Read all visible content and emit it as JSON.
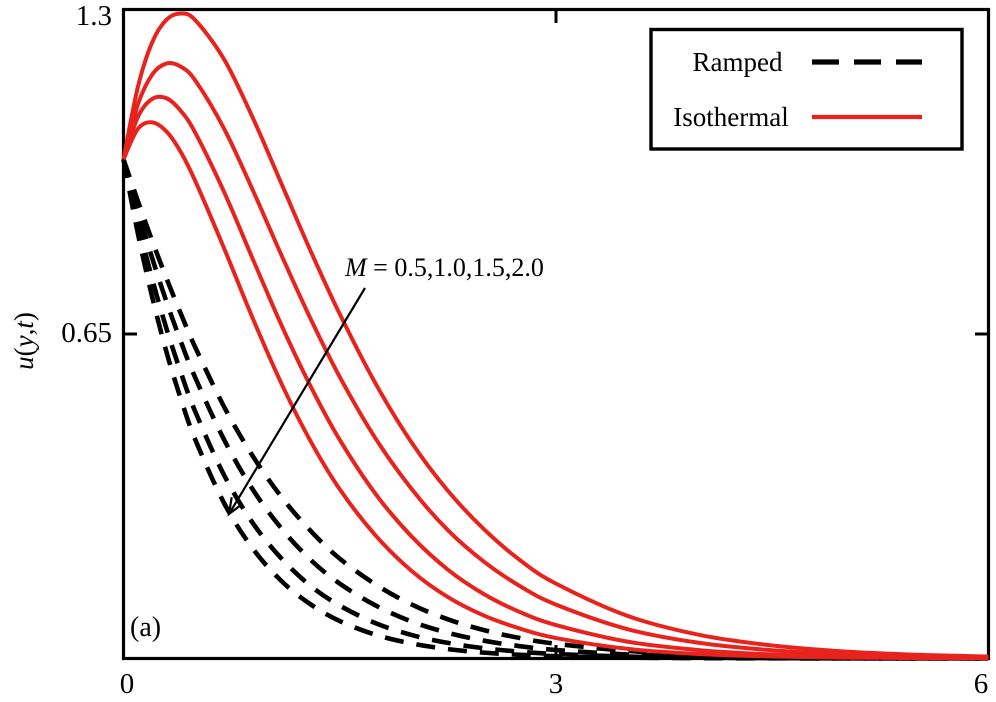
{
  "figure": {
    "panel_label": "(a)",
    "annotation": {
      "param_italic": "M",
      "param_rest": " = 0.5,1.0,1.5,2.0"
    },
    "y_axis": {
      "title": "u(y,t)",
      "title_parts": {
        "v1": "u",
        "p1": "(",
        "v2": "y",
        "c": ",",
        "v3": "t",
        "p2": ")"
      },
      "tick_top": "1.3",
      "tick_mid": "0.65"
    },
    "x_axis": {
      "tick_0": "0",
      "tick_3": "3",
      "tick_6": "6"
    },
    "legend": [
      {
        "label": "Ramped",
        "style": "dashed",
        "color": "#000000"
      },
      {
        "label": "Isothermal",
        "style": "solid",
        "color": "#e8231d"
      }
    ]
  },
  "chart_data": {
    "type": "line",
    "title": "",
    "xlabel": "",
    "ylabel": "u(y,t)",
    "xlim": [
      0,
      6
    ],
    "ylim": [
      0,
      1.3
    ],
    "x_ticks": [
      0,
      3,
      6
    ],
    "y_ticks": [
      0.65,
      1.3
    ],
    "grid": false,
    "legend_position": "top-right",
    "annotation_text": "M = 0.5,1.0,1.5,2.0",
    "x": [
      0,
      0.1,
      0.2,
      0.3,
      0.4,
      0.5,
      0.7,
      0.9,
      1.1,
      1.3,
      1.5,
      1.75,
      2.0,
      2.25,
      2.5,
      2.75,
      3.0,
      3.5,
      4.0,
      4.5,
      5.0,
      5.5,
      6.0
    ],
    "series": [
      {
        "name": "Ramped M=0.5",
        "group": "Ramped",
        "M": 0.5,
        "color": "#000000",
        "dashed": true,
        "values": [
          1,
          0.916,
          0.836,
          0.76,
          0.689,
          0.622,
          0.503,
          0.404,
          0.322,
          0.255,
          0.2,
          0.148,
          0.108,
          0.0785,
          0.0569,
          0.041,
          0.0295,
          0.0151,
          0.0077,
          0.0038,
          0.0019,
          0.001,
          0.0005
        ]
      },
      {
        "name": "Ramped M=1.0",
        "group": "Ramped",
        "M": 1.0,
        "color": "#000000",
        "dashed": true,
        "values": [
          1,
          0.897,
          0.801,
          0.713,
          0.633,
          0.561,
          0.437,
          0.337,
          0.259,
          0.197,
          0.15,
          0.106,
          0.0739,
          0.0515,
          0.0357,
          0.0247,
          0.017,
          0.008,
          0.0037,
          0.0017,
          0.0008,
          0.0004,
          0.0002
        ]
      },
      {
        "name": "Ramped M=1.5",
        "group": "Ramped",
        "M": 1.5,
        "color": "#000000",
        "dashed": true,
        "values": [
          1,
          0.873,
          0.759,
          0.659,
          0.571,
          0.493,
          0.366,
          0.27,
          0.199,
          0.145,
          0.106,
          0.0706,
          0.047,
          0.0312,
          0.0206,
          0.0135,
          0.0089,
          0.0038,
          0.0016,
          0.0007,
          0.0003,
          0.0001,
          0
        ]
      },
      {
        "name": "Ramped M=2.0",
        "group": "Ramped",
        "M": 2.0,
        "color": "#000000",
        "dashed": true,
        "values": [
          1,
          0.851,
          0.723,
          0.612,
          0.518,
          0.437,
          0.31,
          0.219,
          0.154,
          0.108,
          0.075,
          0.0474,
          0.03,
          0.0188,
          0.0118,
          0.0074,
          0.0046,
          0.0018,
          0.0007,
          0.0003,
          0.0001,
          0,
          0
        ]
      },
      {
        "name": "Isothermal M=0.5",
        "group": "Isothermal",
        "M": 0.5,
        "color": "#e8231d",
        "dashed": false,
        "values": [
          1,
          1.145,
          1.235,
          1.28,
          1.292,
          1.278,
          1.199,
          1.081,
          0.948,
          0.815,
          0.69,
          0.55,
          0.432,
          0.336,
          0.259,
          0.197,
          0.15,
          0.085,
          0.047,
          0.026,
          0.014,
          0.0075,
          0.004
        ]
      },
      {
        "name": "Isothermal M=1.0",
        "group": "Isothermal",
        "M": 1.0,
        "color": "#e8231d",
        "dashed": false,
        "values": [
          1,
          1.11,
          1.17,
          1.192,
          1.185,
          1.157,
          1.06,
          0.936,
          0.805,
          0.679,
          0.564,
          0.44,
          0.339,
          0.257,
          0.194,
          0.145,
          0.108,
          0.0585,
          0.031,
          0.0165,
          0.0086,
          0.0044,
          0.0023
        ]
      },
      {
        "name": "Isothermal M=1.5",
        "group": "Isothermal",
        "M": 1.5,
        "color": "#e8231d",
        "dashed": false,
        "values": [
          1,
          1.085,
          1.121,
          1.122,
          1.096,
          1.052,
          0.933,
          0.798,
          0.665,
          0.544,
          0.438,
          0.329,
          0.244,
          0.178,
          0.129,
          0.093,
          0.067,
          0.0335,
          0.0166,
          0.0081,
          0.0039,
          0.0019,
          0.0009
        ]
      },
      {
        "name": "Isothermal M=2.0",
        "group": "Isothermal",
        "M": 2.0,
        "color": "#e8231d",
        "dashed": false,
        "values": [
          1,
          1.061,
          1.074,
          1.055,
          1.013,
          0.955,
          0.82,
          0.679,
          0.548,
          0.434,
          0.339,
          0.246,
          0.175,
          0.123,
          0.086,
          0.06,
          0.041,
          0.0192,
          0.0088,
          0.004,
          0.0018,
          0.0008,
          0.0004
        ]
      }
    ]
  }
}
